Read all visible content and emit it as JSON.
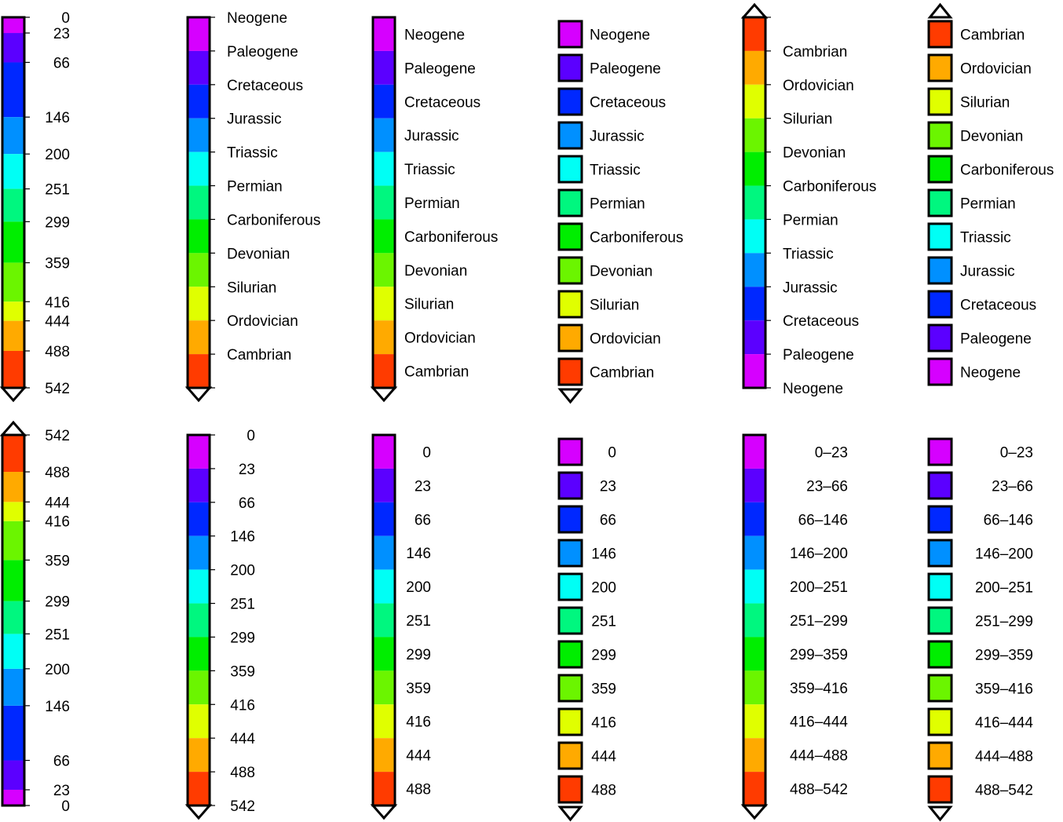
{
  "colors": [
    "#d600ff",
    "#5b00ff",
    "#0028ff",
    "#0090ff",
    "#00fff5",
    "#00f77f",
    "#00ee00",
    "#6bf500",
    "#e0ff00",
    "#ffaa00",
    "#ff3b00"
  ],
  "ages": [
    "0",
    "23",
    "66",
    "146",
    "200",
    "251",
    "299",
    "359",
    "416",
    "444",
    "488",
    "542"
  ],
  "periods": [
    "Neogene",
    "Paleogene",
    "Cretaceous",
    "Jurassic",
    "Triassic",
    "Permian",
    "Carboniferous",
    "Devonian",
    "Silurian",
    "Ordovician",
    "Cambrian"
  ],
  "ranges": [
    "0–23",
    "23–66",
    "66–146",
    "146–200",
    "200–251",
    "251–299",
    "299–359",
    "359–416",
    "416–444",
    "444–488",
    "488–542"
  ]
}
